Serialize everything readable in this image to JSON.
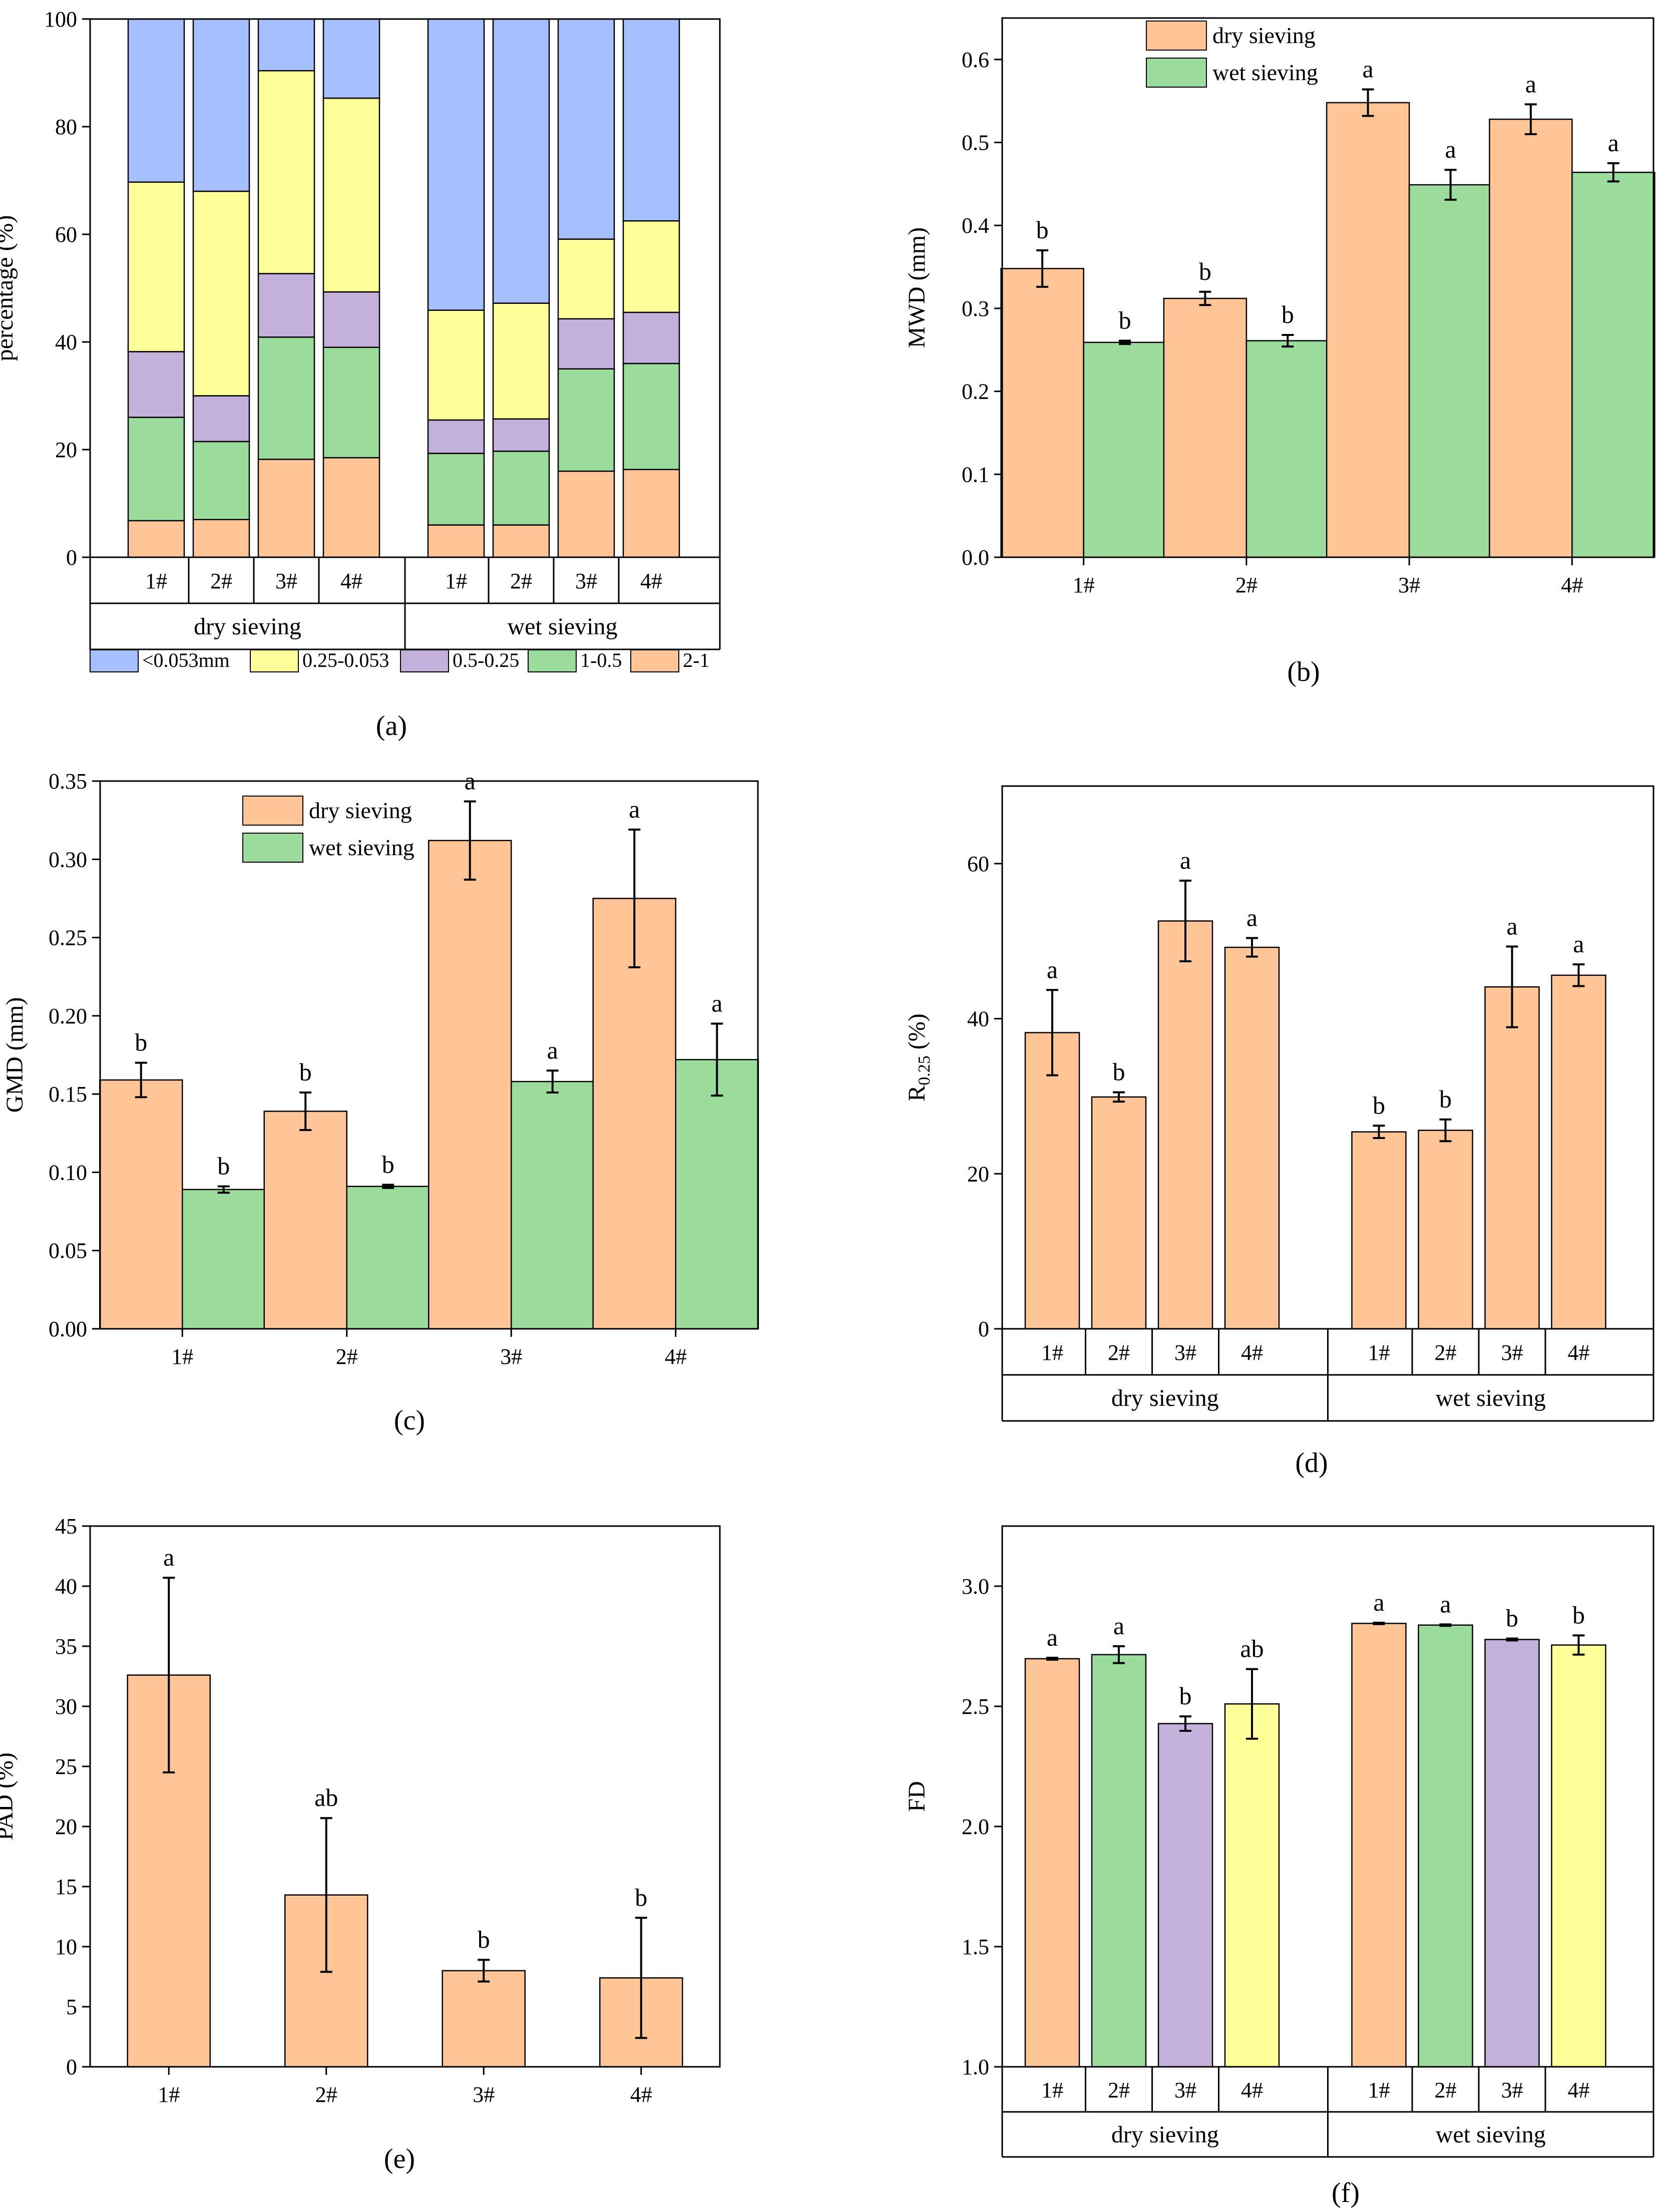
{
  "colors": {
    "lt053": "#a6c0ff",
    "f025_0053": "#ffff99",
    "f05_025": "#c3b1dc",
    "f1_05": "#9bdb9b",
    "f2_1": "#ffc596",
    "dry": "#ffc596",
    "wet": "#9bdb9b"
  },
  "chart_data": [
    {
      "id": "a",
      "panel_label": "(a)",
      "type": "bar",
      "stacked": true,
      "ylabel": "percentage (%)",
      "ylim": [
        0,
        100
      ],
      "yticks": [
        "0",
        "20",
        "40",
        "60",
        "80",
        "100"
      ],
      "groups": [
        {
          "label": "dry sieving",
          "categories": [
            "1#",
            "2#",
            "3#",
            "4#"
          ]
        },
        {
          "label": "wet sieving",
          "categories": [
            "1#",
            "2#",
            "3#",
            "4#"
          ]
        }
      ],
      "series": [
        {
          "name": "2-1",
          "color_key": "f2_1",
          "values": [
            6.8,
            7,
            18.2,
            18.5,
            6,
            6,
            16,
            16.3
          ]
        },
        {
          "name": "1-0.5",
          "color_key": "f1_05",
          "values": [
            19.2,
            14.5,
            22.7,
            20.5,
            13.3,
            13.7,
            19,
            19.7
          ]
        },
        {
          "name": "0.5-0.25",
          "color_key": "f05_025",
          "values": [
            12.2,
            8.5,
            11.8,
            10.3,
            6.2,
            6,
            9.3,
            9.5
          ]
        },
        {
          "name": "0.25-0.053",
          "color_key": "f025_0053",
          "values": [
            31.5,
            38,
            37.7,
            36,
            20.4,
            21.5,
            14.8,
            17
          ]
        },
        {
          "name": "<0.053mm",
          "color_key": "lt053",
          "values": [
            30.3,
            32,
            9.6,
            14.7,
            54.1,
            52.8,
            40.9,
            37.5
          ]
        }
      ],
      "legend": [
        "<0.053mm",
        "0.25-0.053",
        "0.5-0.25",
        "1-0.5",
        "2-1"
      ],
      "legend_position": "bottom"
    },
    {
      "id": "b",
      "panel_label": "(b)",
      "type": "bar",
      "ylabel": "MWD (mm)",
      "ylim": [
        0,
        0.65
      ],
      "yticks": [
        "0.0",
        "0.1",
        "0.2",
        "0.3",
        "0.4",
        "0.5",
        "0.6"
      ],
      "categories": [
        "1#",
        "2#",
        "3#",
        "4#"
      ],
      "series": [
        {
          "name": "dry sieving",
          "color_key": "dry",
          "values": [
            0.348,
            0.312,
            0.548,
            0.528
          ],
          "errors": [
            0.022,
            0.008,
            0.016,
            0.018
          ],
          "letters": [
            "b",
            "b",
            "a",
            "a"
          ]
        },
        {
          "name": "wet sieving",
          "color_key": "wet",
          "values": [
            0.259,
            0.261,
            0.449,
            0.464
          ],
          "errors": [
            0.002,
            0.007,
            0.018,
            0.011
          ],
          "letters": [
            "b",
            "b",
            "a",
            "a"
          ]
        }
      ],
      "legend_position": "top-center"
    },
    {
      "id": "c",
      "panel_label": "(c)",
      "type": "bar",
      "ylabel": "GMD (mm)",
      "ylim": [
        0,
        0.35
      ],
      "yticks": [
        "0.00",
        "0.05",
        "0.10",
        "0.15",
        "0.20",
        "0.25",
        "0.30",
        "0.35"
      ],
      "categories": [
        "1#",
        "2#",
        "3#",
        "4#"
      ],
      "series": [
        {
          "name": "dry sieving",
          "color_key": "dry",
          "values": [
            0.159,
            0.139,
            0.312,
            0.275
          ],
          "errors": [
            0.011,
            0.012,
            0.025,
            0.044
          ],
          "letters": [
            "b",
            "b",
            "a",
            "a"
          ]
        },
        {
          "name": "wet sieving",
          "color_key": "wet",
          "values": [
            0.089,
            0.091,
            0.158,
            0.172
          ],
          "errors": [
            0.002,
            0.001,
            0.007,
            0.023
          ],
          "letters": [
            "b",
            "b",
            "a",
            "a"
          ]
        }
      ],
      "legend_position": "top-center"
    },
    {
      "id": "d",
      "panel_label": "(d)",
      "type": "bar",
      "ylabel_main": "R",
      "ylabel_sub": "0.25",
      "ylabel_unit": " (%)",
      "ylim": [
        0,
        70
      ],
      "yticks": [
        "0",
        "20",
        "40",
        "60"
      ],
      "groups": [
        {
          "label": "dry sieving",
          "categories": [
            "1#",
            "2#",
            "3#",
            "4#"
          ]
        },
        {
          "label": "wet sieving",
          "categories": [
            "1#",
            "2#",
            "3#",
            "4#"
          ]
        }
      ],
      "values": [
        38.2,
        29.9,
        52.6,
        49.2,
        25.4,
        25.6,
        44.1,
        45.6
      ],
      "errors": [
        5.5,
        0.6,
        5.2,
        1.2,
        0.8,
        1.4,
        5.2,
        1.4
      ],
      "letters": [
        "a",
        "b",
        "a",
        "a",
        "b",
        "b",
        "a",
        "a"
      ],
      "color_key": "dry"
    },
    {
      "id": "e",
      "panel_label": "(e)",
      "type": "bar",
      "ylabel": "PAD (%)",
      "ylim": [
        0,
        45
      ],
      "yticks": [
        "0",
        "5",
        "10",
        "15",
        "20",
        "25",
        "30",
        "35",
        "40",
        "45"
      ],
      "categories": [
        "1#",
        "2#",
        "3#",
        "4#"
      ],
      "values": [
        32.6,
        14.3,
        8.0,
        7.4
      ],
      "errors": [
        8.1,
        6.4,
        0.9,
        5.0
      ],
      "letters": [
        "a",
        "ab",
        "b",
        "b"
      ],
      "color_key": "dry"
    },
    {
      "id": "f",
      "panel_label": "(f)",
      "type": "bar",
      "ylabel": "FD",
      "ylim": [
        1.0,
        3.25
      ],
      "yticks": [
        "1.0",
        "1.5",
        "2.0",
        "2.5",
        "3.0"
      ],
      "groups": [
        {
          "label": "dry sieving",
          "categories": [
            "1#",
            "2#",
            "3#",
            "4#"
          ]
        },
        {
          "label": "wet sieving",
          "categories": [
            "1#",
            "2#",
            "3#",
            "4#"
          ]
        }
      ],
      "values": [
        2.698,
        2.715,
        2.428,
        2.51,
        2.845,
        2.838,
        2.778,
        2.755
      ],
      "errors": [
        0.004,
        0.035,
        0.03,
        0.145,
        0.003,
        0.003,
        0.004,
        0.04
      ],
      "letters": [
        "a",
        "a",
        "b",
        "ab",
        "a",
        "a",
        "b",
        "b"
      ],
      "color_keys": [
        "f2_1",
        "f1_05",
        "f05_025",
        "f025_0053",
        "f2_1",
        "f1_05",
        "f05_025",
        "f025_0053"
      ]
    }
  ]
}
